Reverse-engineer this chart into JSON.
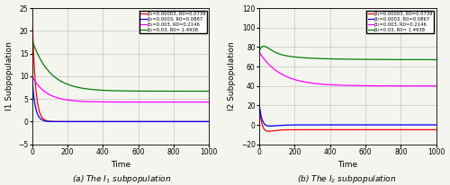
{
  "colors": [
    "red",
    "blue",
    "magenta",
    "green"
  ],
  "labels": [
    "β₂=0.00003, R0=0.0739",
    "β₂=0.0003, R0=0.0867",
    "β₂=0.003, R0=0.2146",
    "β₂=0.03, R0= 1.4938"
  ],
  "t_max": 1000,
  "I1_ylim": [
    -5,
    25
  ],
  "I2_ylim": [
    -20,
    120
  ],
  "I1_yticks": [
    -5,
    0,
    5,
    10,
    15,
    20,
    25
  ],
  "I2_yticks": [
    -20,
    0,
    20,
    40,
    60,
    80,
    100,
    120
  ],
  "xticks": [
    0,
    200,
    400,
    600,
    800,
    1000
  ],
  "xlabel": "Time",
  "ylabel_I1": "I1 Subpopulation",
  "ylabel_I2": "I2 Subpopulation",
  "caption_a": "(a) The $I_1$ subpopulation",
  "caption_b": "(b) The $I_2$ subpopulation",
  "grid_color": "#cccccc",
  "bg_color": "#f5f5f0"
}
